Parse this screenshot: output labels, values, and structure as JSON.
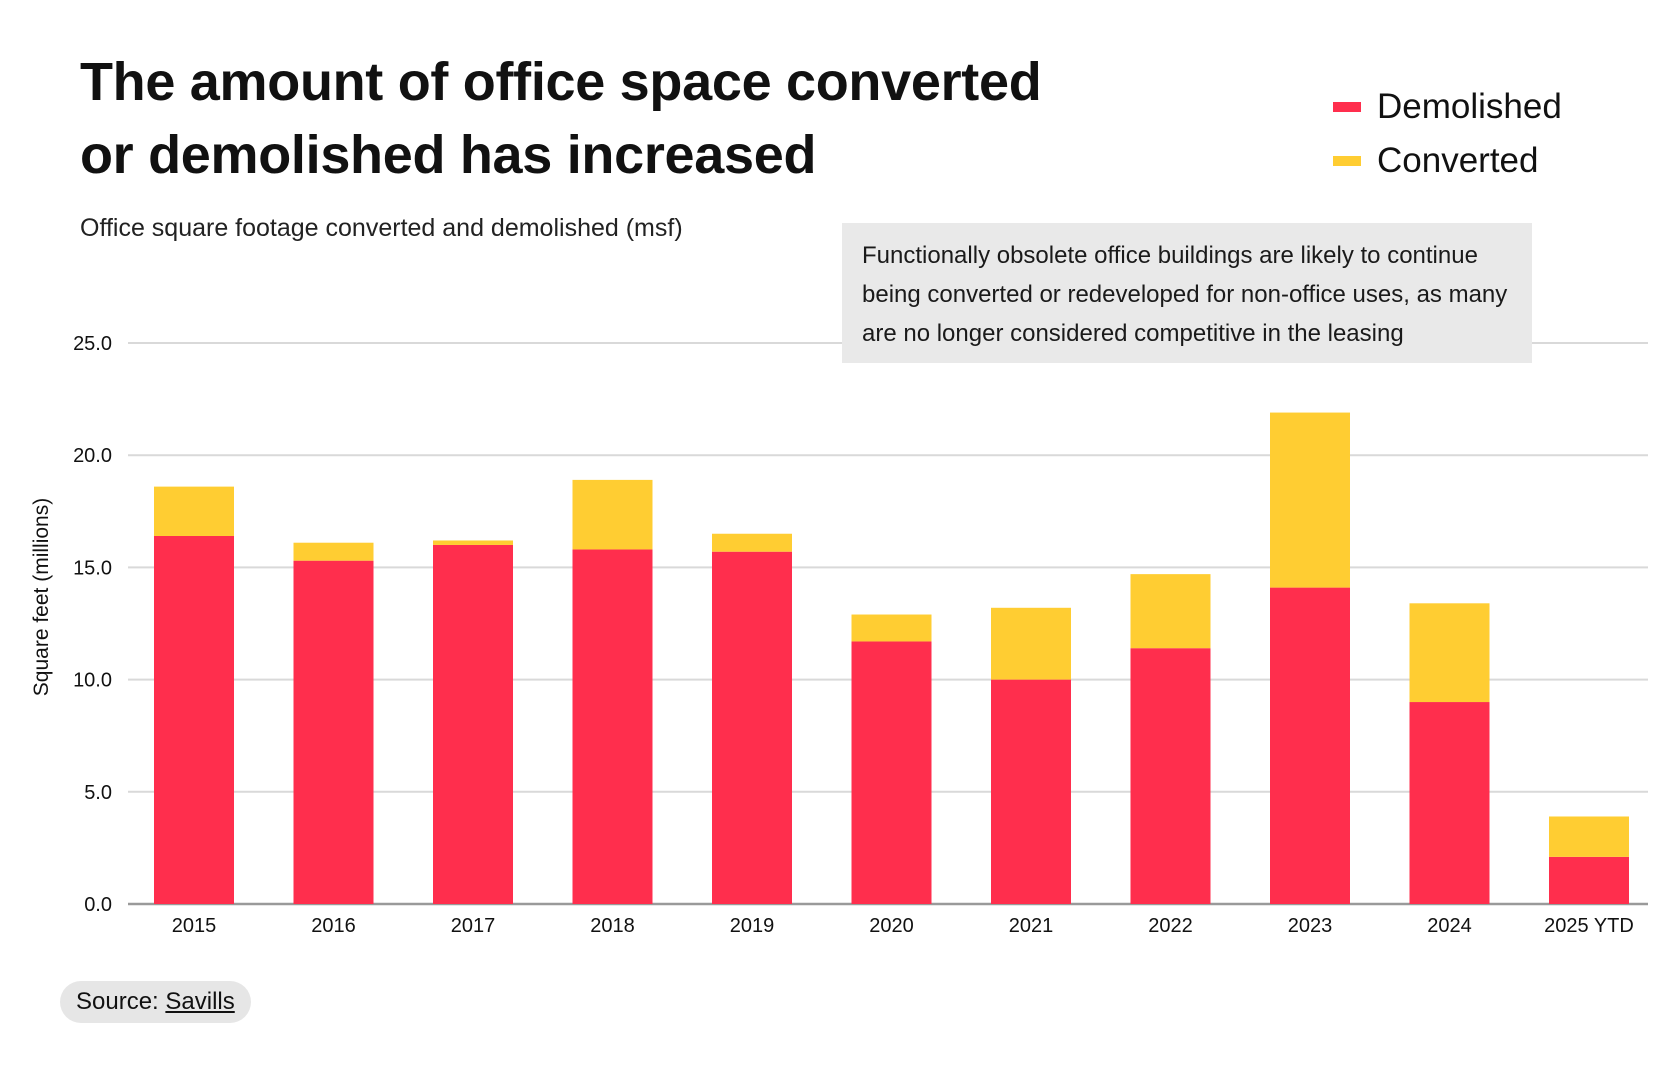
{
  "title": "The amount of office space converted or demolished has increased",
  "subtitle": "Office square footage converted and demolished (msf)",
  "note": "Functionally obsolete office buildings are likely to continue being converted or redeveloped for non-office uses, as many are no longer considered competitive in the leasing",
  "source": {
    "label": "Source:",
    "link": "Savills"
  },
  "legend": [
    {
      "name": "Demolished",
      "color": "#ff2e4d"
    },
    {
      "name": "Converted",
      "color": "#ffcd32"
    }
  ],
  "chart_data": {
    "type": "bar",
    "stacked": true,
    "title": "The amount of office space converted or demolished has increased",
    "subtitle": "Office square footage converted and demolished (msf)",
    "xlabel": "",
    "ylabel": "Square feet (millions)",
    "ylim": [
      0,
      25
    ],
    "yticks": [
      "0.0",
      "5.0",
      "10.0",
      "15.0",
      "20.0",
      "25.0"
    ],
    "ytick_values": [
      0,
      5,
      10,
      15,
      20,
      25
    ],
    "grid": true,
    "legend_position": "top-right",
    "categories": [
      "2015",
      "2016",
      "2017",
      "2018",
      "2019",
      "2020",
      "2021",
      "2022",
      "2023",
      "2024",
      "2025 YTD"
    ],
    "series": [
      {
        "name": "Demolished",
        "color": "#ff2e4d",
        "values": [
          16.4,
          15.3,
          16.0,
          15.8,
          15.7,
          11.7,
          10.0,
          11.4,
          14.1,
          9.0,
          2.1
        ]
      },
      {
        "name": "Converted",
        "color": "#ffcd32",
        "values": [
          2.2,
          0.8,
          0.2,
          3.1,
          0.8,
          1.2,
          3.2,
          3.3,
          7.8,
          4.4,
          1.8
        ]
      }
    ]
  }
}
